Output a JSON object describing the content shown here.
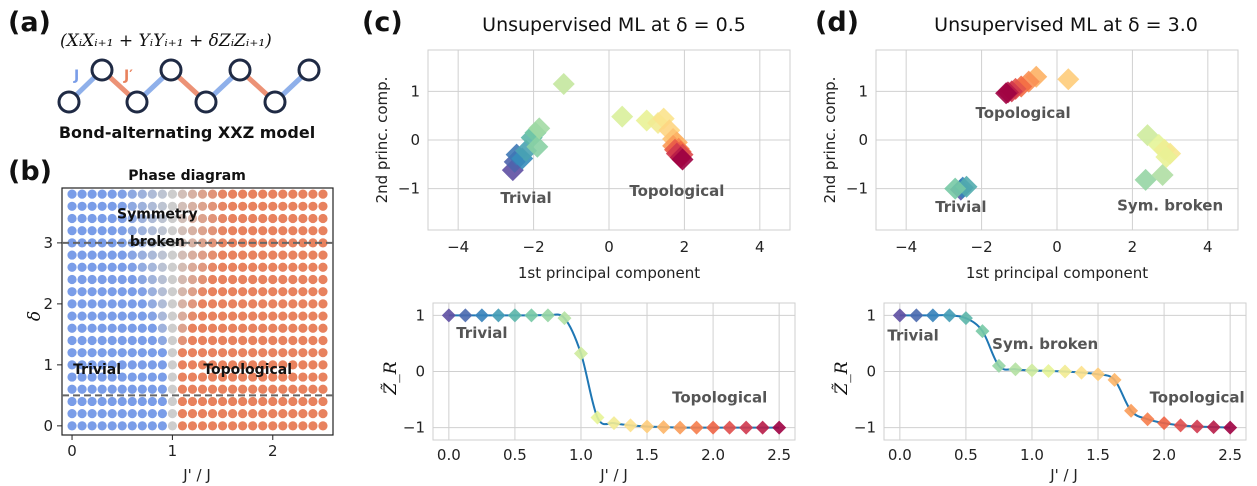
{
  "panel_labels": {
    "a": "(a)",
    "b": "(b)",
    "c": "(c)",
    "d": "(d)"
  },
  "colors": {
    "trivial_blue": "#7a9de8",
    "topological_orange": "#e8825e",
    "bond_blue": "#8fb0ea",
    "bond_orange": "#ec9276",
    "node_stroke": "#1f2a44",
    "curve_blue": "#1f77b4",
    "grid": "#d0d0d0"
  },
  "panel_a": {
    "hamiltonian": "(XᵢXᵢ₊₁ + YᵢYᵢ₊₁ + δZᵢZᵢ₊₁)",
    "bond_label_j": "J",
    "bond_label_jprime": "J′",
    "caption": "Bond-alternating XXZ model"
  },
  "chart_data": [
    {
      "id": "phase_diagram",
      "type": "scatter",
      "title": "Phase diagram",
      "xlabel": "J' / J",
      "ylabel": "δ",
      "xlim": [
        -0.1,
        2.6
      ],
      "ylim": [
        -0.15,
        3.9
      ],
      "xticks": [
        "0",
        "1",
        "2"
      ],
      "yticks": [
        "0",
        "1",
        "2",
        "3"
      ],
      "grid": {
        "x_min": 0.0,
        "x_max": 2.5,
        "x_step": 0.1,
        "y_min": 0.0,
        "y_max": 3.8,
        "y_step": 0.2
      },
      "cuts": [
        0.5,
        3.0
      ],
      "regions": [
        {
          "label": "Trivial",
          "x": 0.25,
          "y": 0.85
        },
        {
          "label": "Topological",
          "x": 1.75,
          "y": 0.85
        },
        {
          "label": "Symmetry",
          "x": 0.85,
          "y": 3.4
        },
        {
          "label": "broken",
          "x": 0.85,
          "y": 2.95
        }
      ]
    },
    {
      "id": "pca_0_5",
      "type": "scatter",
      "title": "Unsupervised ML at δ = 0.5",
      "xlabel": "1st principal component",
      "ylabel": "2nd princ. comp.",
      "xlim": [
        -4.8,
        4.8
      ],
      "ylim": [
        -1.85,
        1.85
      ],
      "xticks": [
        -4,
        -2,
        0,
        2,
        4
      ],
      "yticks": [
        -1,
        0,
        1
      ],
      "points": [
        {
          "x": -2.55,
          "y": -0.62,
          "c": 0.0
        },
        {
          "x": -2.5,
          "y": -0.45,
          "c": 0.04
        },
        {
          "x": -2.45,
          "y": -0.3,
          "c": 0.08
        },
        {
          "x": -2.3,
          "y": -0.38,
          "c": 0.12
        },
        {
          "x": -2.2,
          "y": -0.22,
          "c": 0.16
        },
        {
          "x": -2.05,
          "y": 0.05,
          "c": 0.2
        },
        {
          "x": -1.95,
          "y": 0.15,
          "c": 0.24
        },
        {
          "x": -1.9,
          "y": -0.14,
          "c": 0.28
        },
        {
          "x": -1.85,
          "y": 0.24,
          "c": 0.32
        },
        {
          "x": -1.2,
          "y": 1.15,
          "c": 0.38
        },
        {
          "x": 0.35,
          "y": 0.48,
          "c": 0.42
        },
        {
          "x": 1.0,
          "y": 0.4,
          "c": 0.46
        },
        {
          "x": 1.3,
          "y": 0.35,
          "c": 0.5
        },
        {
          "x": 1.45,
          "y": 0.44,
          "c": 0.54
        },
        {
          "x": 1.6,
          "y": 0.2,
          "c": 0.58
        },
        {
          "x": 1.7,
          "y": 0.02,
          "c": 0.62
        },
        {
          "x": 1.8,
          "y": -0.05,
          "c": 0.66
        },
        {
          "x": 1.7,
          "y": -0.12,
          "c": 0.7
        },
        {
          "x": 1.85,
          "y": -0.18,
          "c": 0.74
        },
        {
          "x": 1.9,
          "y": -0.24,
          "c": 0.78
        },
        {
          "x": 1.75,
          "y": -0.2,
          "c": 0.82
        },
        {
          "x": 1.95,
          "y": -0.3,
          "c": 0.86
        },
        {
          "x": 1.8,
          "y": -0.28,
          "c": 0.9
        },
        {
          "x": 1.9,
          "y": -0.36,
          "c": 0.95
        },
        {
          "x": 1.95,
          "y": -0.4,
          "c": 1.0
        }
      ],
      "annotations": [
        {
          "text": "Trivial",
          "x": -2.2,
          "y": -1.3
        },
        {
          "text": "Topological",
          "x": 1.8,
          "y": -1.15
        }
      ]
    },
    {
      "id": "pca_3_0",
      "type": "scatter",
      "title": "Unsupervised ML at δ = 3.0",
      "xlabel": "1st principal component",
      "ylabel": "2nd princ. comp.",
      "xlim": [
        -4.8,
        4.8
      ],
      "ylim": [
        -1.85,
        1.85
      ],
      "xticks": [
        -4,
        -2,
        0,
        2,
        4
      ],
      "yticks": [
        -1,
        0,
        1
      ],
      "points": [
        {
          "x": -2.55,
          "y": -1.02,
          "c": 0.02
        },
        {
          "x": -2.5,
          "y": -0.98,
          "c": 0.1
        },
        {
          "x": -2.4,
          "y": -0.96,
          "c": 0.18
        },
        {
          "x": -2.7,
          "y": -1.0,
          "c": 0.25
        },
        {
          "x": 2.35,
          "y": -0.82,
          "c": 0.3
        },
        {
          "x": 2.8,
          "y": -0.72,
          "c": 0.34
        },
        {
          "x": 2.4,
          "y": 0.1,
          "c": 0.4
        },
        {
          "x": 2.7,
          "y": -0.1,
          "c": 0.44
        },
        {
          "x": 2.85,
          "y": -0.2,
          "c": 0.48
        },
        {
          "x": 3.0,
          "y": -0.28,
          "c": 0.52
        },
        {
          "x": 2.9,
          "y": -0.35,
          "c": 0.46
        },
        {
          "x": 0.3,
          "y": 1.25,
          "c": 0.6
        },
        {
          "x": -0.55,
          "y": 1.3,
          "c": 0.66
        },
        {
          "x": -0.75,
          "y": 1.2,
          "c": 0.72
        },
        {
          "x": -0.95,
          "y": 1.1,
          "c": 0.78
        },
        {
          "x": -1.1,
          "y": 1.05,
          "c": 0.84
        },
        {
          "x": -1.2,
          "y": 1.0,
          "c": 0.9
        },
        {
          "x": -1.3,
          "y": 0.98,
          "c": 0.95
        },
        {
          "x": -1.35,
          "y": 0.96,
          "c": 1.0
        }
      ],
      "annotations": [
        {
          "text": "Topological",
          "x": -0.9,
          "y": 0.45
        },
        {
          "text": "Trivial",
          "x": -2.55,
          "y": -1.48
        },
        {
          "text": "Sym. broken",
          "x": 3.0,
          "y": -1.45
        }
      ]
    },
    {
      "id": "zr_0_5",
      "type": "line",
      "xlabel": "J' / J",
      "ylabel": "Z̃_R",
      "xlim": [
        -0.12,
        2.62
      ],
      "ylim": [
        -1.22,
        1.22
      ],
      "xticks": [
        "0.0",
        "0.5",
        "1.0",
        "1.5",
        "2.0",
        "2.5"
      ],
      "yticks": [
        "−1",
        "0",
        "1"
      ],
      "x": [
        0.0,
        0.125,
        0.25,
        0.375,
        0.5,
        0.625,
        0.75,
        0.875,
        1.0,
        1.125,
        1.25,
        1.375,
        1.5,
        1.625,
        1.75,
        1.875,
        2.0,
        2.125,
        2.25,
        2.375,
        2.5
      ],
      "values": [
        1.0,
        1.0,
        1.0,
        1.0,
        1.0,
        1.0,
        1.0,
        0.95,
        0.32,
        -0.82,
        -0.92,
        -0.96,
        -0.98,
        -0.99,
        -1.0,
        -1.0,
        -1.0,
        -1.0,
        -1.0,
        -1.0,
        -1.0
      ],
      "annotations": [
        {
          "text": "Trivial",
          "x": 0.25,
          "y": 0.6
        },
        {
          "text": "Topological",
          "x": 2.05,
          "y": -0.55
        }
      ]
    },
    {
      "id": "zr_3_0",
      "type": "line",
      "xlabel": "J' / J",
      "ylabel": "Z̃_R",
      "xlim": [
        -0.12,
        2.62
      ],
      "ylim": [
        -1.22,
        1.22
      ],
      "xticks": [
        "0.0",
        "0.5",
        "1.0",
        "1.5",
        "2.0",
        "2.5"
      ],
      "yticks": [
        "−1",
        "0",
        "1"
      ],
      "x": [
        0.0,
        0.125,
        0.25,
        0.375,
        0.5,
        0.625,
        0.75,
        0.875,
        1.0,
        1.125,
        1.25,
        1.375,
        1.5,
        1.625,
        1.75,
        1.875,
        2.0,
        2.125,
        2.25,
        2.375,
        2.5
      ],
      "values": [
        1.0,
        1.0,
        1.0,
        1.0,
        0.95,
        0.72,
        0.1,
        0.04,
        0.02,
        0.01,
        0.0,
        -0.02,
        -0.05,
        -0.15,
        -0.7,
        -0.85,
        -0.92,
        -0.96,
        -0.98,
        -0.99,
        -1.0
      ],
      "annotations": [
        {
          "text": "Trivial",
          "x": 0.1,
          "y": 0.55
        },
        {
          "text": "Sym. broken",
          "x": 1.1,
          "y": 0.4
        },
        {
          "text": "Topological",
          "x": 2.25,
          "y": -0.55
        }
      ]
    }
  ]
}
